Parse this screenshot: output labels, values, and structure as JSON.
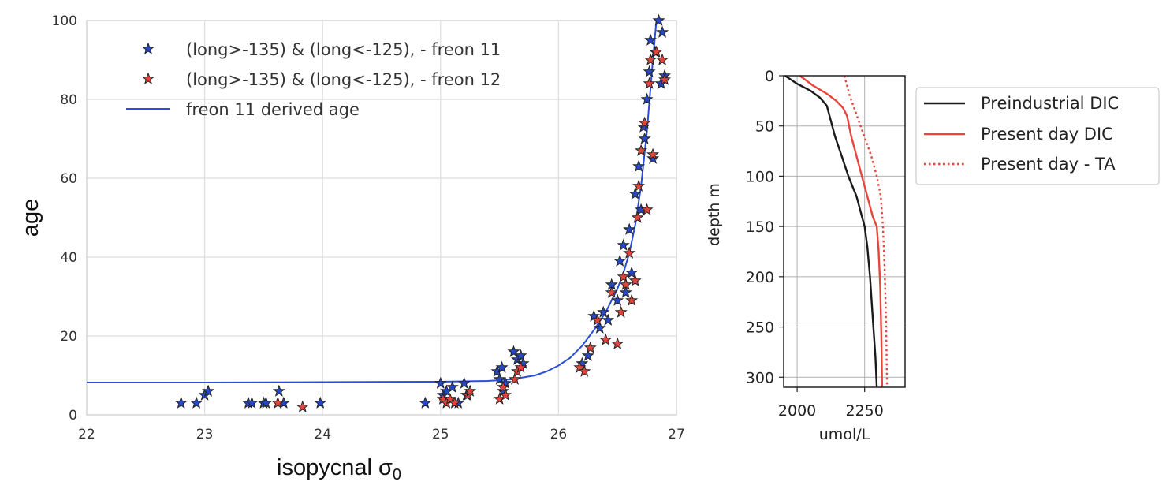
{
  "chart_data": [
    {
      "type": "scatter",
      "title": "",
      "xlabel": "isopycnal σ",
      "xlabel_sub": "0",
      "ylabel": "age",
      "xlim": [
        22,
        27
      ],
      "ylim": [
        0,
        100
      ],
      "xticks": [
        "22",
        "23",
        "24",
        "25",
        "26",
        "27"
      ],
      "yticks": [
        "0",
        "20",
        "40",
        "60",
        "80",
        "100"
      ],
      "grid": true,
      "legend_position": "upper-left",
      "series": [
        {
          "name": "(long>-135) & (long<-125), - freon 11",
          "marker": "star",
          "color": "#2747c4",
          "points": [
            [
              22.8,
              3
            ],
            [
              22.93,
              3
            ],
            [
              23.0,
              5
            ],
            [
              23.03,
              6
            ],
            [
              23.37,
              3
            ],
            [
              23.4,
              3
            ],
            [
              23.5,
              3
            ],
            [
              23.52,
              3
            ],
            [
              23.63,
              6
            ],
            [
              23.67,
              3
            ],
            [
              23.98,
              3
            ],
            [
              24.87,
              3
            ],
            [
              25.0,
              8
            ],
            [
              25.02,
              5
            ],
            [
              25.05,
              6
            ],
            [
              25.1,
              7
            ],
            [
              25.15,
              3
            ],
            [
              25.2,
              8
            ],
            [
              25.22,
              5
            ],
            [
              25.48,
              11
            ],
            [
              25.5,
              9
            ],
            [
              25.52,
              12
            ],
            [
              25.53,
              6
            ],
            [
              25.55,
              8
            ],
            [
              25.62,
              16
            ],
            [
              25.65,
              14
            ],
            [
              25.68,
              15
            ],
            [
              25.7,
              13
            ],
            [
              26.2,
              13
            ],
            [
              26.25,
              15
            ],
            [
              26.3,
              25
            ],
            [
              26.35,
              22
            ],
            [
              26.38,
              26
            ],
            [
              26.42,
              24
            ],
            [
              26.45,
              33
            ],
            [
              26.5,
              29
            ],
            [
              26.52,
              39
            ],
            [
              26.55,
              43
            ],
            [
              26.57,
              31
            ],
            [
              26.6,
              47
            ],
            [
              26.62,
              36
            ],
            [
              26.65,
              56
            ],
            [
              26.68,
              63
            ],
            [
              26.7,
              52
            ],
            [
              26.72,
              73
            ],
            [
              26.73,
              70
            ],
            [
              26.75,
              80
            ],
            [
              26.77,
              87
            ],
            [
              26.78,
              95
            ],
            [
              26.8,
              65
            ],
            [
              26.82,
              92
            ],
            [
              26.85,
              100
            ],
            [
              26.88,
              97
            ],
            [
              26.9,
              86
            ],
            [
              26.87,
              84
            ]
          ]
        },
        {
          "name": "(long>-135) & (long<-125), - freon 12",
          "marker": "star",
          "color": "#e2453b",
          "points": [
            [
              23.62,
              3
            ],
            [
              23.83,
              2
            ],
            [
              25.02,
              4
            ],
            [
              25.05,
              3
            ],
            [
              25.08,
              4
            ],
            [
              25.12,
              3
            ],
            [
              25.23,
              5
            ],
            [
              25.25,
              6
            ],
            [
              25.5,
              4
            ],
            [
              25.53,
              7
            ],
            [
              25.55,
              5
            ],
            [
              25.63,
              9
            ],
            [
              25.65,
              11
            ],
            [
              25.68,
              12
            ],
            [
              26.18,
              12
            ],
            [
              26.22,
              11
            ],
            [
              26.27,
              17
            ],
            [
              26.33,
              24
            ],
            [
              26.4,
              19
            ],
            [
              26.45,
              31
            ],
            [
              26.5,
              18
            ],
            [
              26.53,
              26
            ],
            [
              26.55,
              35
            ],
            [
              26.57,
              33
            ],
            [
              26.6,
              41
            ],
            [
              26.62,
              29
            ],
            [
              26.65,
              34
            ],
            [
              26.67,
              50
            ],
            [
              26.68,
              58
            ],
            [
              26.7,
              67
            ],
            [
              26.73,
              74
            ],
            [
              26.75,
              52
            ],
            [
              26.77,
              84
            ],
            [
              26.78,
              90
            ],
            [
              26.8,
              66
            ],
            [
              26.83,
              92
            ],
            [
              26.88,
              90
            ],
            [
              26.9,
              85
            ]
          ]
        },
        {
          "name": "freon 11 derived age",
          "type": "line",
          "color": "#2a4ed8",
          "x": [
            22.0,
            23.0,
            24.0,
            25.0,
            25.4,
            25.6,
            25.8,
            25.9,
            26.0,
            26.1,
            26.2,
            26.3,
            26.4,
            26.5,
            26.55,
            26.6,
            26.65,
            26.7,
            26.75,
            26.8,
            26.83
          ],
          "y": [
            8.2,
            8.2,
            8.3,
            8.4,
            8.6,
            9.0,
            10.0,
            11.0,
            12.5,
            14.5,
            17.5,
            21.5,
            26.0,
            32.0,
            36.0,
            41.0,
            48.0,
            58.0,
            72.0,
            90.0,
            100.0
          ]
        }
      ]
    },
    {
      "type": "line",
      "title": "",
      "xlabel": "umol/L",
      "ylabel": "depth m",
      "xlim": [
        1950,
        2400
      ],
      "ylim": [
        310,
        0
      ],
      "xticks": [
        "2000",
        "2250"
      ],
      "yticks": [
        "0",
        "50",
        "100",
        "150",
        "200",
        "250",
        "300"
      ],
      "grid": true,
      "legend_position": "outside-right",
      "series": [
        {
          "name": "Preindustrial DIC",
          "color": "#1a1a1a",
          "style": "solid",
          "x": [
            1955,
            2000,
            2050,
            2085,
            2110,
            2120,
            2140,
            2165,
            2190,
            2220,
            2240,
            2250,
            2260,
            2270,
            2280,
            2290,
            2295
          ],
          "y": [
            0,
            8,
            15,
            22,
            30,
            40,
            60,
            80,
            100,
            120,
            140,
            150,
            170,
            200,
            240,
            280,
            310
          ]
        },
        {
          "name": "Present day DIC",
          "color": "#e8453c",
          "style": "solid",
          "x": [
            2010,
            2060,
            2110,
            2145,
            2170,
            2185,
            2200,
            2220,
            2240,
            2260,
            2280,
            2295,
            2302,
            2308,
            2312,
            2315
          ],
          "y": [
            0,
            10,
            18,
            25,
            32,
            40,
            60,
            80,
            100,
            120,
            140,
            150,
            175,
            210,
            260,
            310
          ]
        },
        {
          "name": "Present day - TA",
          "color": "#e8453c",
          "style": "dotted",
          "x": [
            2175,
            2195,
            2215,
            2235,
            2255,
            2275,
            2295,
            2310,
            2318,
            2324,
            2328,
            2331,
            2333
          ],
          "y": [
            0,
            20,
            35,
            50,
            65,
            80,
            100,
            120,
            150,
            190,
            230,
            270,
            310
          ]
        }
      ]
    }
  ]
}
